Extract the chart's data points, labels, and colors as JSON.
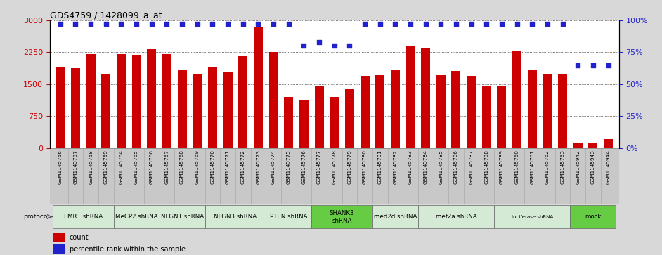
{
  "title": "GDS4759 / 1428099_a_at",
  "samples": [
    "GSM1145756",
    "GSM1145757",
    "GSM1145758",
    "GSM1145759",
    "GSM1145764",
    "GSM1145765",
    "GSM1145766",
    "GSM1145767",
    "GSM1145768",
    "GSM1145769",
    "GSM1145770",
    "GSM1145771",
    "GSM1145772",
    "GSM1145773",
    "GSM1145774",
    "GSM1145775",
    "GSM1145776",
    "GSM1145777",
    "GSM1145778",
    "GSM1145779",
    "GSM1145780",
    "GSM1145781",
    "GSM1145782",
    "GSM1145783",
    "GSM1145784",
    "GSM1145785",
    "GSM1145786",
    "GSM1145787",
    "GSM1145788",
    "GSM1145789",
    "GSM1145760",
    "GSM1145761",
    "GSM1145762",
    "GSM1145763",
    "GSM1145942",
    "GSM1145943",
    "GSM1145944"
  ],
  "counts": [
    1900,
    1870,
    2200,
    1750,
    2200,
    2190,
    2330,
    2200,
    1850,
    1740,
    1900,
    1800,
    2150,
    2840,
    2250,
    1200,
    1140,
    1450,
    1200,
    1380,
    1700,
    1710,
    1820,
    2390,
    2360,
    1710,
    1810,
    1700,
    1460,
    1450,
    2290,
    1820,
    1750,
    1740,
    130,
    125,
    200
  ],
  "percentiles": [
    97,
    97,
    97,
    97,
    97,
    97,
    97,
    97,
    97,
    97,
    97,
    97,
    97,
    97,
    97,
    97,
    80,
    83,
    80,
    80,
    97,
    97,
    97,
    97,
    97,
    97,
    97,
    97,
    97,
    97,
    97,
    97,
    97,
    97,
    65,
    65,
    65
  ],
  "protocols": [
    {
      "label": "FMR1 shRNA",
      "start": 0,
      "end": 4,
      "color": "#d5ead5"
    },
    {
      "label": "MeCP2 shRNA",
      "start": 4,
      "end": 7,
      "color": "#d5ead5"
    },
    {
      "label": "NLGN1 shRNA",
      "start": 7,
      "end": 10,
      "color": "#d5ead5"
    },
    {
      "label": "NLGN3 shRNA",
      "start": 10,
      "end": 14,
      "color": "#d5ead5"
    },
    {
      "label": "PTEN shRNA",
      "start": 14,
      "end": 17,
      "color": "#d5ead5"
    },
    {
      "label": "SHANK3\nshRNA",
      "start": 17,
      "end": 21,
      "color": "#66cc44"
    },
    {
      "label": "med2d shRNA",
      "start": 21,
      "end": 24,
      "color": "#d5ead5"
    },
    {
      "label": "mef2a shRNA",
      "start": 24,
      "end": 29,
      "color": "#d5ead5"
    },
    {
      "label": "luciferase shRNA",
      "start": 29,
      "end": 34,
      "color": "#d5ead5"
    },
    {
      "label": "mock",
      "start": 34,
      "end": 37,
      "color": "#66cc44"
    }
  ],
  "bar_color": "#cc0000",
  "dot_color": "#2222cc",
  "ylim_left": [
    0,
    3000
  ],
  "ylim_right": [
    0,
    100
  ],
  "yticks_left": [
    0,
    750,
    1500,
    2250,
    3000
  ],
  "yticks_right": [
    0,
    25,
    50,
    75,
    100
  ],
  "bg_color": "#d8d8d8",
  "plot_bg": "#ffffff",
  "tick_bg": "#c8c8c8",
  "legend_count_color": "#cc0000",
  "legend_pct_color": "#2222cc"
}
